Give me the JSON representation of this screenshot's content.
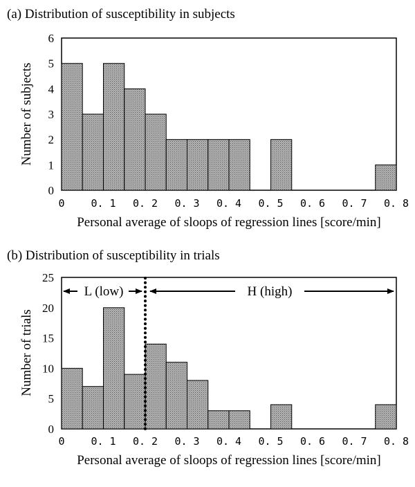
{
  "chart_data": [
    {
      "type": "bar",
      "title": "(a) Distribution of susceptibility in subjects",
      "xlabel": "Personal average of sloops of regression lines [score/min]",
      "ylabel": "Number of subjects",
      "xlim": [
        0,
        0.8
      ],
      "ylim": [
        0,
        6
      ],
      "yticks": [
        "0",
        "1",
        "2",
        "3",
        "4",
        "5",
        "6"
      ],
      "xticks": [
        "0",
        "0. 1",
        "0. 2",
        "0. 3",
        "0. 4",
        "0. 5",
        "0. 6",
        "0. 7",
        "0. 8"
      ],
      "bin_width": 0.05,
      "bins": [
        0,
        0.05,
        0.1,
        0.15,
        0.2,
        0.25,
        0.3,
        0.35,
        0.4,
        0.45,
        0.5,
        0.55,
        0.6,
        0.65,
        0.7,
        0.75
      ],
      "values": [
        5,
        3,
        5,
        4,
        3,
        2,
        2,
        2,
        2,
        0,
        2,
        0,
        0,
        0,
        0,
        1
      ],
      "grid": false,
      "bar_color": "#a9a9a9"
    },
    {
      "type": "bar",
      "title": "(b) Distribution of susceptibility in trials",
      "xlabel": "Personal average of sloops of regression lines [score/min]",
      "ylabel": "Number of trials",
      "xlim": [
        0,
        0.8
      ],
      "ylim": [
        0,
        25
      ],
      "yticks": [
        "0",
        "5",
        "10",
        "15",
        "20",
        "25"
      ],
      "xticks": [
        "0",
        "0. 1",
        "0. 2",
        "0. 3",
        "0. 4",
        "0. 5",
        "0. 6",
        "0. 7",
        "0. 8"
      ],
      "bin_width": 0.05,
      "bins": [
        0,
        0.05,
        0.1,
        0.15,
        0.2,
        0.25,
        0.3,
        0.35,
        0.4,
        0.45,
        0.5,
        0.55,
        0.6,
        0.65,
        0.7,
        0.75
      ],
      "values": [
        10,
        7,
        20,
        9,
        14,
        11,
        8,
        3,
        3,
        0,
        4,
        0,
        0,
        0,
        0,
        4
      ],
      "grid": false,
      "bar_color": "#a9a9a9",
      "divider_x": 0.2,
      "region_labels": {
        "low": "L (low)",
        "high": "H (high)"
      }
    }
  ]
}
